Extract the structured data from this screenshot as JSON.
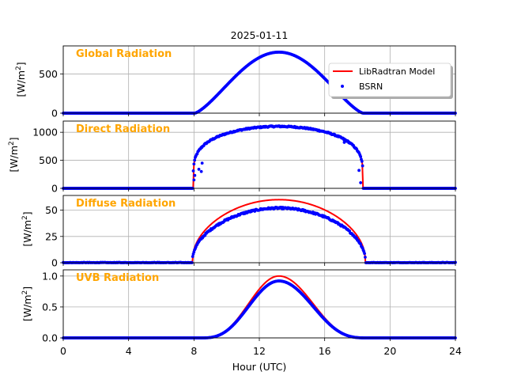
{
  "chart_data": {
    "type": "line",
    "title": "2025-01-11",
    "xlabel": "Hour (UTC)",
    "xlim": [
      0,
      24
    ],
    "xticks": [
      0,
      4,
      8,
      12,
      16,
      20,
      24
    ],
    "grid": true,
    "legend": {
      "placement": "right",
      "entries": [
        {
          "name": "LibRadtran Model",
          "color": "#ff0000",
          "style": "line"
        },
        {
          "name": "BSRN",
          "color": "#0000ff",
          "style": "dots"
        }
      ]
    },
    "panels": [
      {
        "id": "global",
        "label": "Global Radiation",
        "ylabel_main": "[W/m",
        "ylabel_sup": "2",
        "ylabel_end": "]",
        "ylim": [
          0,
          860
        ],
        "yticks": [
          0,
          500
        ],
        "sunrise": 8.05,
        "sunset": 18.35,
        "peak_time": 13.2,
        "model_peak": 775,
        "bsrn_peak": 780,
        "shape_exp": 1.35,
        "bsrn_noise": 0
      },
      {
        "id": "direct",
        "label": "Direct Radiation",
        "ylabel_main": "[W/m",
        "ylabel_sup": "2",
        "ylabel_end": "]",
        "ylim": [
          0,
          1200
        ],
        "yticks": [
          0,
          500,
          1000
        ],
        "sunrise": 7.95,
        "sunset": 18.35,
        "peak_time": 13.2,
        "model_peak": 1110,
        "bsrn_peak": 1105,
        "shape_exp": 0.22,
        "bsrn_noise": 12
      },
      {
        "id": "diffuse",
        "label": "Diffuse Radiation",
        "ylabel_main": "[W/m",
        "ylabel_sup": "2",
        "ylabel_end": "]",
        "ylim": [
          0,
          64
        ],
        "yticks": [
          0,
          25,
          50
        ],
        "sunrise": 7.9,
        "sunset": 18.5,
        "peak_time": 13.2,
        "model_peak": 60,
        "bsrn_peak": 52,
        "shape_exp": 0.45,
        "bsrn_noise": 0.8
      },
      {
        "id": "uvb",
        "label": "UVB Radiation",
        "ylabel_main": "[W/m",
        "ylabel_sup": "2",
        "ylabel_end": "]",
        "ylim": [
          0,
          1.1
        ],
        "yticks": [
          0.0,
          0.5,
          1.0
        ],
        "ytick_labels": [
          "0.0",
          "0.5",
          "1.0"
        ],
        "sunrise": 8.4,
        "sunset": 18.6,
        "peak_time": 13.2,
        "model_peak": 1.0,
        "bsrn_peak": 0.92,
        "shape_exp": 3.0,
        "bsrn_noise": 0
      }
    ]
  }
}
